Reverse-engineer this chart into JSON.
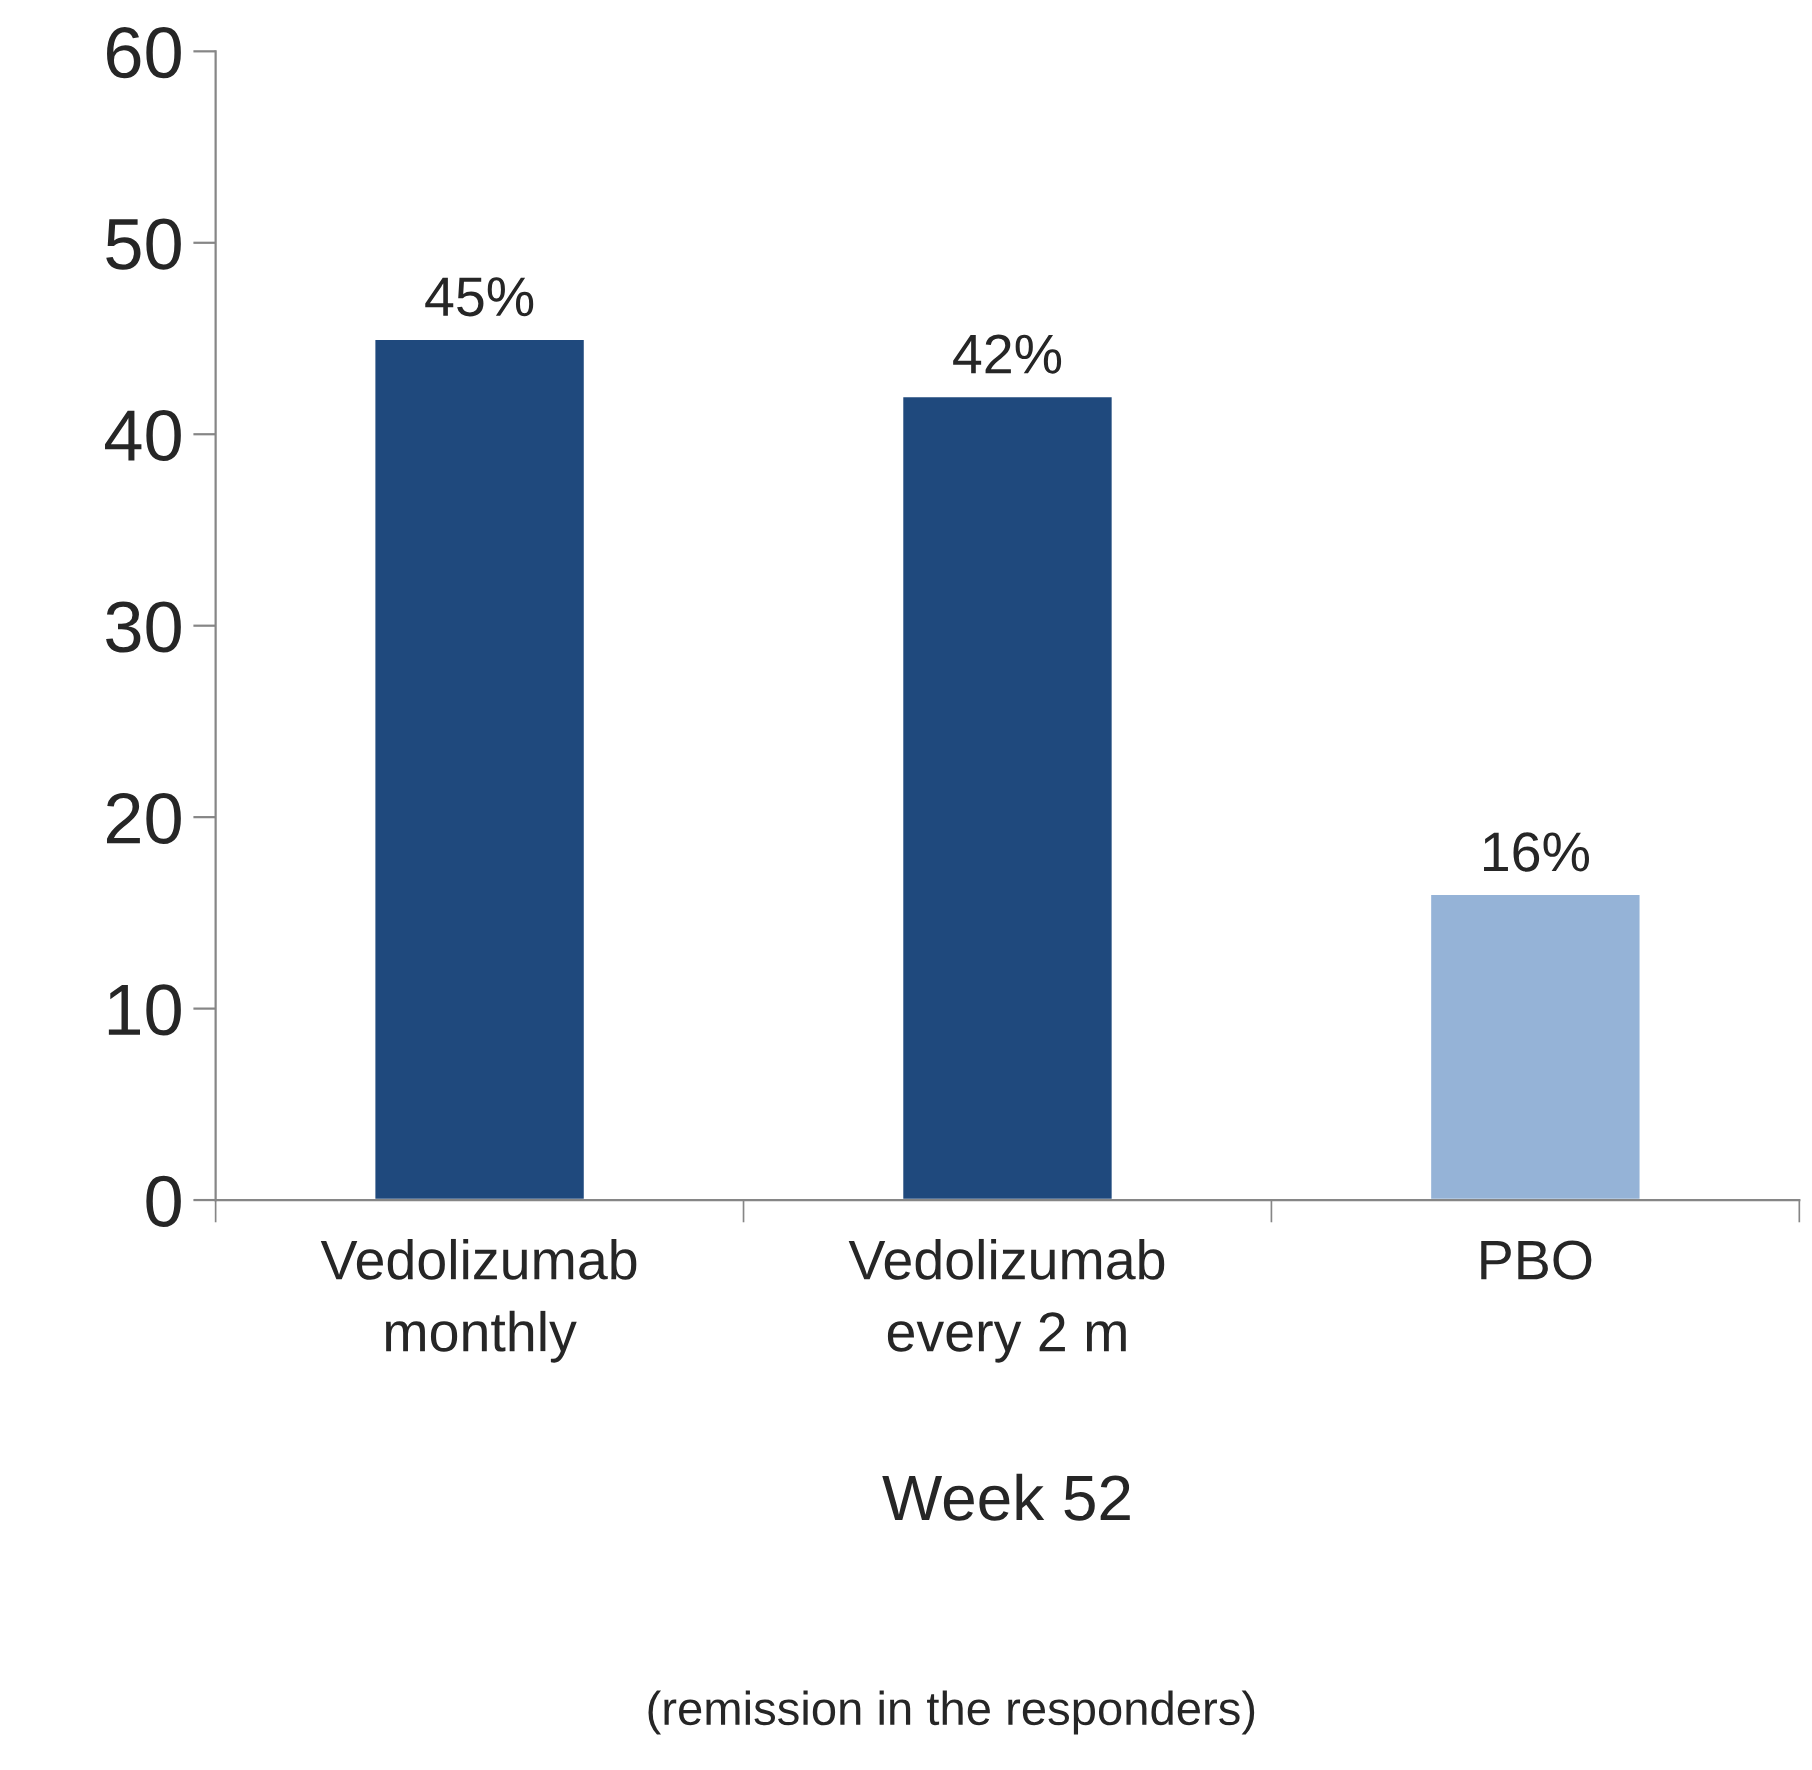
{
  "chart_data": {
    "type": "bar",
    "categories": [
      "Vedolizumab\nmonthly",
      "Vedolizumab\nevery 2 m",
      "PBO"
    ],
    "values": [
      45,
      42,
      16
    ],
    "colors": [
      "#1f497d",
      "#1f497d",
      "#95b3d7"
    ],
    "value_labels": [
      "45%",
      "42%",
      "16%"
    ],
    "ylim": [
      0,
      60
    ],
    "yticks": [
      0,
      10,
      20,
      30,
      40,
      50,
      60
    ],
    "xlabel": "Week 52",
    "annotations": [
      "(remission in the responders)"
    ],
    "grid": false,
    "legend": false
  }
}
